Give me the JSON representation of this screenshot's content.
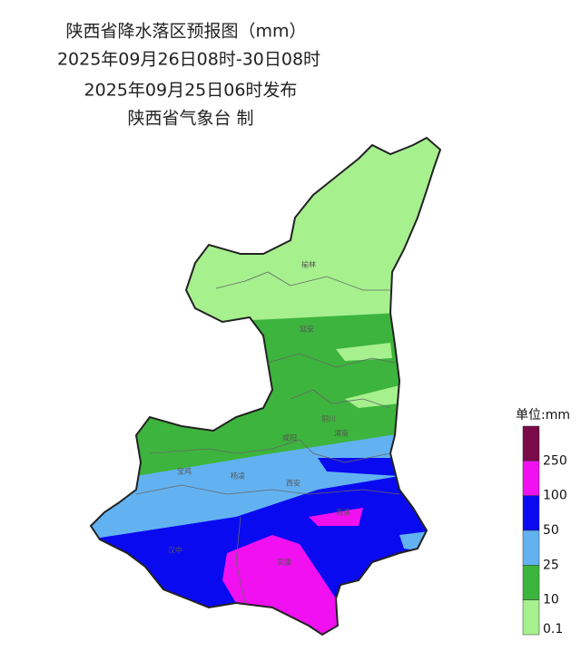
{
  "header": {
    "title": "陕西省降水落区预报图（mm）",
    "period": "2025年09月26日08时-30日08时",
    "issued": "2025年09月25日06时发布",
    "agency": "陕西省气象台 制"
  },
  "cities": [
    {
      "label": "榆林"
    },
    {
      "label": "延安"
    },
    {
      "label": "铜川"
    },
    {
      "label": "渭南"
    },
    {
      "label": "咸阳"
    },
    {
      "label": "宝鸡"
    },
    {
      "label": "杨凌"
    },
    {
      "label": "西安"
    },
    {
      "label": "商洛"
    },
    {
      "label": "汉中"
    },
    {
      "label": "安康"
    }
  ],
  "legend": {
    "title": "单位:mm",
    "colors": [
      "#7a0a48",
      "#f010f0",
      "#0a0af0",
      "#62b2f2",
      "#3db43d",
      "#a6f08e"
    ],
    "labels": [
      "250",
      "100",
      "50",
      "25",
      "10",
      "0.1"
    ]
  }
}
